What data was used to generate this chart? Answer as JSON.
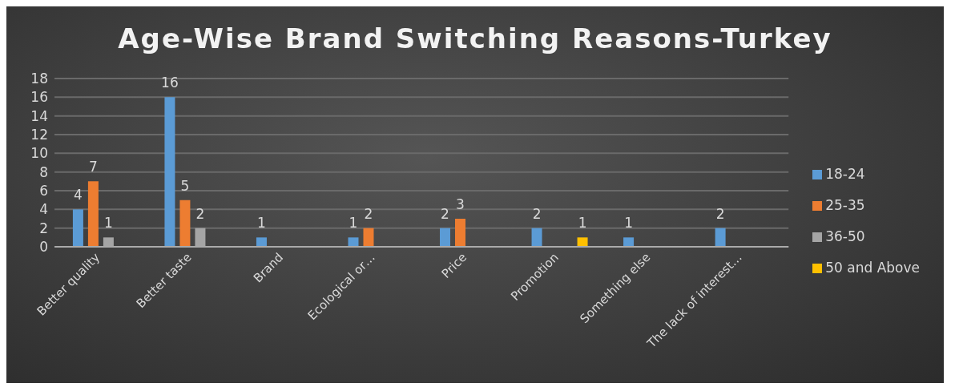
{
  "chart_data": {
    "type": "bar",
    "title": "Age-Wise Brand Switching Reasons-Turkey",
    "categories": [
      "Better quality",
      "Better taste",
      "Brand",
      "Ecological or…",
      "Price",
      "Promotion",
      "Something else",
      "The lack of interest…"
    ],
    "series": [
      {
        "name": "18-24",
        "color": "#5b9bd5",
        "values": [
          4,
          16,
          1,
          1,
          2,
          2,
          1,
          2
        ]
      },
      {
        "name": "25-35",
        "color": "#ed7d31",
        "values": [
          7,
          5,
          null,
          2,
          3,
          null,
          null,
          null
        ]
      },
      {
        "name": "36-50",
        "color": "#a5a5a5",
        "values": [
          1,
          2,
          null,
          null,
          null,
          null,
          null,
          null
        ]
      },
      {
        "name": "50 and Above",
        "color": "#ffc000",
        "values": [
          null,
          null,
          null,
          null,
          null,
          1,
          null,
          null
        ]
      }
    ],
    "ylim": [
      0,
      18
    ],
    "yticks": [
      0,
      2,
      4,
      6,
      8,
      10,
      12,
      14,
      16,
      18
    ],
    "grid": "y",
    "legend": "right",
    "data_labels": true
  }
}
